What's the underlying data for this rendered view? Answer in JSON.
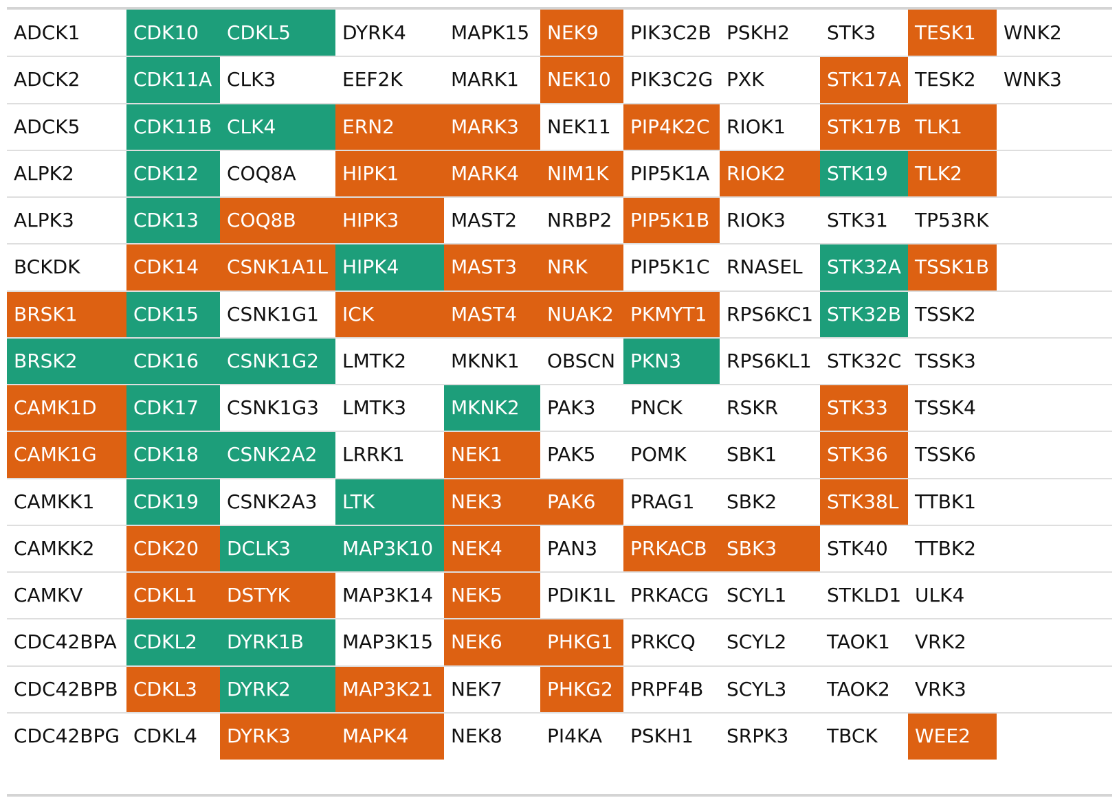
{
  "colors": {
    "orange": "#dd6112",
    "green": "#1d9e7a",
    "none": "#ffffff",
    "text_dark": "#111111",
    "text_light": "#ffffff"
  },
  "chart_data": {
    "type": "table",
    "title": "",
    "columns": [
      [
        "ADCK1",
        "ADCK2",
        "ADCK5",
        "ALPK2",
        "ALPK3",
        "BCKDK",
        "BRSK1",
        "BRSK2",
        "CAMK1D",
        "CAMK1G",
        "CAMKK1",
        "CAMKK2",
        "CAMKV",
        "CDC42BPA",
        "CDC42BPB",
        "CDC42BPG"
      ],
      [
        "CDK10",
        "CDK11A",
        "CDK11B",
        "CDK12",
        "CDK13",
        "CDK14",
        "CDK15",
        "CDK16",
        "CDK17",
        "CDK18",
        "CDK19",
        "CDK20",
        "CDKL1",
        "CDKL2",
        "CDKL3",
        "CDKL4"
      ],
      [
        "CDKL5",
        "CLK3",
        "CLK4",
        "COQ8A",
        "COQ8B",
        "CSNK1A1L",
        "CSNK1G1",
        "CSNK1G2",
        "CSNK1G3",
        "CSNK2A2",
        "CSNK2A3",
        "DCLK3",
        "DSTYK",
        "DYRK1B",
        "DYRK2",
        "DYRK3"
      ],
      [
        "DYRK4",
        "EEF2K",
        "ERN2",
        "HIPK1",
        "HIPK3",
        "HIPK4",
        "ICK",
        "LMTK2",
        "LMTK3",
        "LRRK1",
        "LTK",
        "MAP3K10",
        "MAP3K14",
        "MAP3K15",
        "MAP3K21",
        "MAPK4"
      ],
      [
        "MAPK15",
        "MARK1",
        "MARK3",
        "MARK4",
        "MAST2",
        "MAST3",
        "MAST4",
        "MKNK1",
        "MKNK2",
        "NEK1",
        "NEK3",
        "NEK4",
        "NEK5",
        "NEK6",
        "NEK7",
        "NEK8"
      ],
      [
        "NEK9",
        "NEK10",
        "NEK11",
        "NIM1K",
        "NRBP2",
        "NRK",
        "NUAK2",
        "OBSCN",
        "PAK3",
        "PAK5",
        "PAK6",
        "PAN3",
        "PDIK1L",
        "PHKG1",
        "PHKG2",
        "PI4KA"
      ],
      [
        "PIK3C2B",
        "PIK3C2G",
        "PIP4K2C",
        "PIP5K1A",
        "PIP5K1B",
        "PIP5K1C",
        "PKMYT1",
        "PKN3",
        "PNCK",
        "POMK",
        "PRAG1",
        "PRKACB",
        "PRKACG",
        "PRKCQ",
        "PRPF4B",
        "PSKH1"
      ],
      [
        "PSKH2",
        "PXK",
        "RIOK1",
        "RIOK2",
        "RIOK3",
        "RNASEL",
        "RPS6KC1",
        "RPS6KL1",
        "RSKR",
        "SBK1",
        "SBK2",
        "SBK3",
        "SCYL1",
        "SCYL2",
        "SCYL3",
        "SRPK3"
      ],
      [
        "STK3",
        "STK17A",
        "STK17B",
        "STK19",
        "STK31",
        "STK32A",
        "STK32B",
        "STK32C",
        "STK33",
        "STK36",
        "STK38L",
        "STK40",
        "STKLD1",
        "TAOK1",
        "TAOK2",
        "TBCK"
      ],
      [
        "TESK1",
        "TESK2",
        "TLK1",
        "TLK2",
        "TP53RK",
        "TSSK1B",
        "TSSK2",
        "TSSK3",
        "TSSK4",
        "TSSK6",
        "TTBK1",
        "TTBK2",
        "ULK4",
        "VRK2",
        "VRK3",
        "WEE2"
      ],
      [
        "WNK2",
        "WNK3",
        "",
        "",
        "",
        "",
        "",
        "",
        "",
        "",
        "",
        "",
        "",
        "",
        "",
        ""
      ]
    ],
    "highlight": [
      [
        "-",
        "-",
        "-",
        "-",
        "-",
        "-",
        "O",
        "G",
        "O",
        "O",
        "-",
        "-",
        "-",
        "-",
        "-",
        "-"
      ],
      [
        "G",
        "G",
        "G",
        "G",
        "G",
        "O",
        "G",
        "G",
        "G",
        "G",
        "G",
        "O",
        "O",
        "G",
        "O",
        "-"
      ],
      [
        "G",
        "-",
        "G",
        "-",
        "O",
        "O",
        "-",
        "G",
        "-",
        "G",
        "-",
        "G",
        "O",
        "G",
        "G",
        "O"
      ],
      [
        "-",
        "-",
        "O",
        "O",
        "O",
        "G",
        "O",
        "-",
        "-",
        "-",
        "G",
        "G",
        "-",
        "-",
        "O",
        "O"
      ],
      [
        "-",
        "-",
        "O",
        "O",
        "-",
        "O",
        "O",
        "-",
        "G",
        "O",
        "O",
        "O",
        "O",
        "O",
        "-",
        "-"
      ],
      [
        "O",
        "O",
        "-",
        "O",
        "-",
        "O",
        "O",
        "-",
        "-",
        "-",
        "O",
        "-",
        "-",
        "O",
        "O",
        "-"
      ],
      [
        "-",
        "-",
        "O",
        "-",
        "O",
        "-",
        "O",
        "G",
        "-",
        "-",
        "-",
        "O",
        "-",
        "-",
        "-",
        "-"
      ],
      [
        "-",
        "-",
        "-",
        "O",
        "-",
        "-",
        "-",
        "-",
        "-",
        "-",
        "-",
        "O",
        "-",
        "-",
        "-",
        "-"
      ],
      [
        "-",
        "O",
        "O",
        "G",
        "-",
        "G",
        "G",
        "-",
        "O",
        "O",
        "O",
        "-",
        "-",
        "-",
        "-",
        "-"
      ],
      [
        "O",
        "-",
        "O",
        "O",
        "-",
        "O",
        "-",
        "-",
        "-",
        "-",
        "-",
        "-",
        "-",
        "-",
        "-",
        "O"
      ],
      [
        "-",
        "-",
        "-",
        "-",
        "-",
        "-",
        "-",
        "-",
        "-",
        "-",
        "-",
        "-",
        "-",
        "-",
        "-",
        "-"
      ]
    ]
  }
}
